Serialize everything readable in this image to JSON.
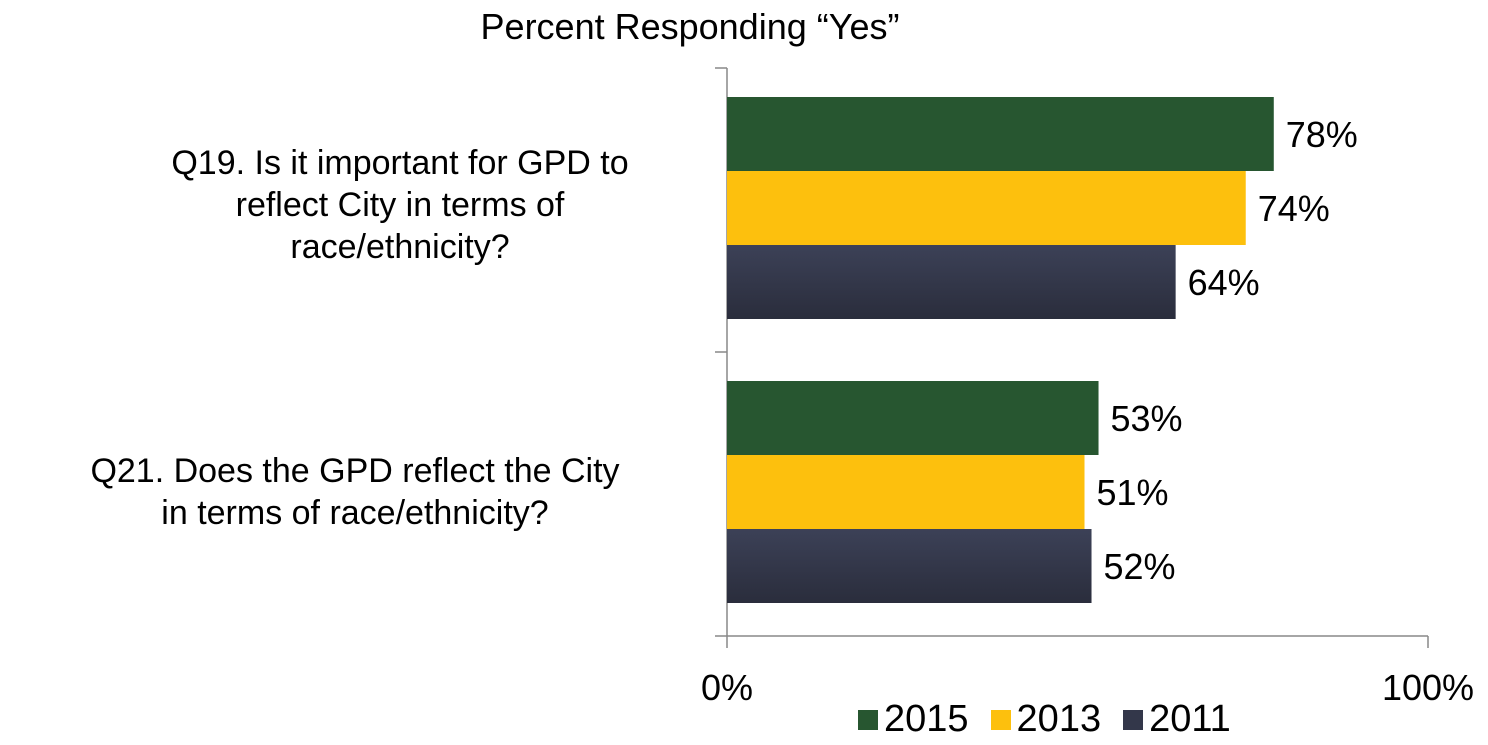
{
  "chart_data": {
    "type": "bar",
    "orientation": "horizontal",
    "title": "Percent Responding “Yes”",
    "categories": [
      [
        "Q19. Is it important for GPD to",
        "reflect City in terms of",
        "race/ethnicity?"
      ],
      [
        "Q21.  Does the GPD reflect the City",
        "in terms of race/ethnicity?"
      ]
    ],
    "series": [
      {
        "name": "2015",
        "color": "#275630",
        "values": [
          78,
          53
        ],
        "labels": [
          "78%",
          "53%"
        ]
      },
      {
        "name": "2013",
        "color": "#fdc00d",
        "values": [
          74,
          51
        ],
        "labels": [
          "74%",
          "51%"
        ]
      },
      {
        "name": "2011",
        "color": "#33374a",
        "values": [
          64,
          52
        ],
        "labels": [
          "64%",
          "52%"
        ]
      }
    ],
    "xlim": [
      0,
      100
    ],
    "x_ticks": [
      "0%",
      "100%"
    ],
    "grid": false,
    "legend": "bottom"
  }
}
